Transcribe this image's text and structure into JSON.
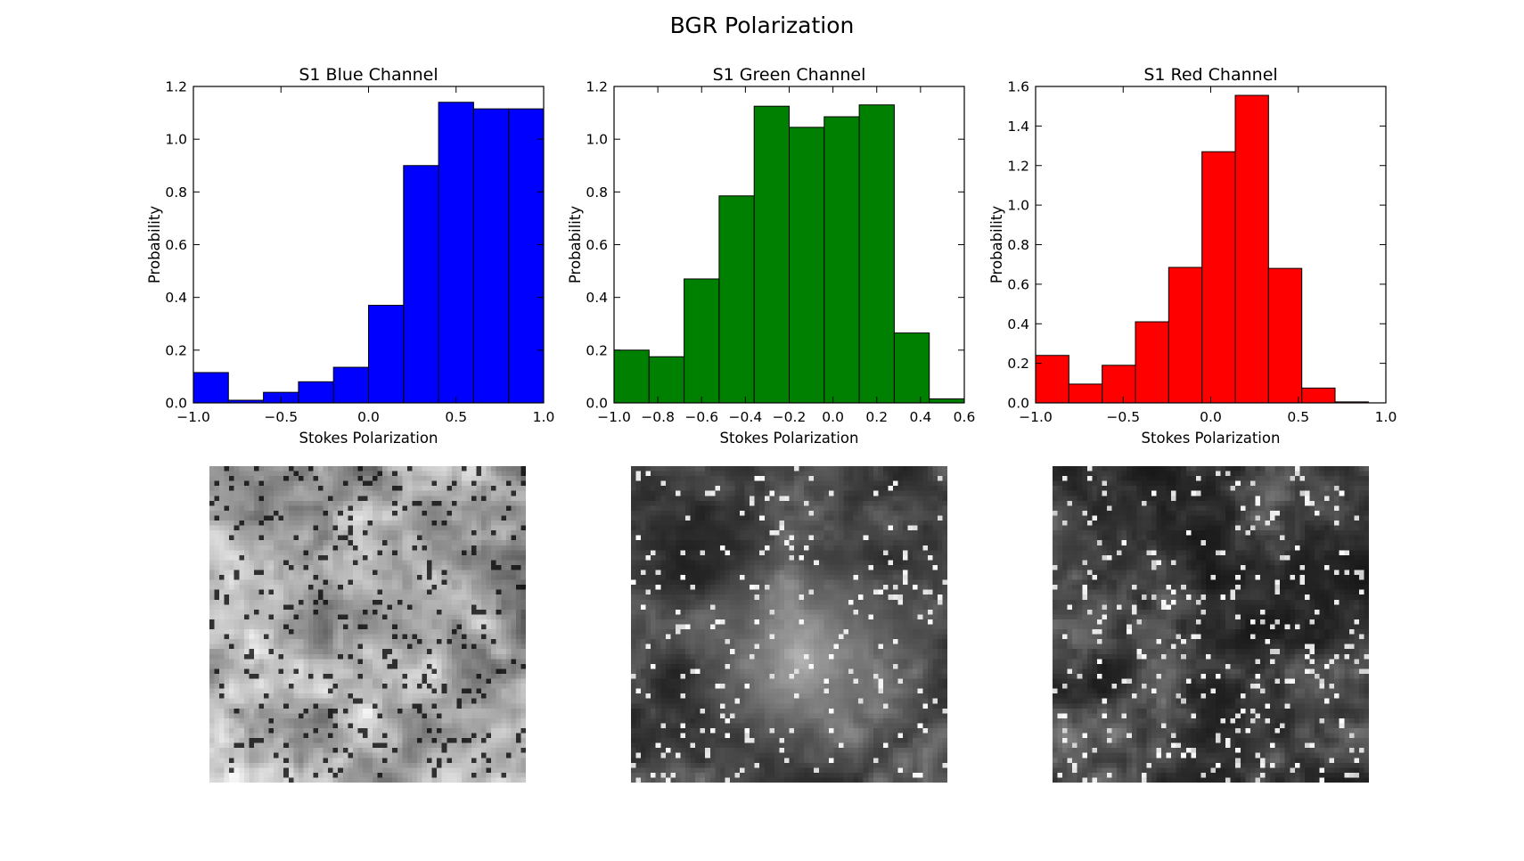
{
  "figure": {
    "title": "BGR Polarization"
  },
  "chart_data": [
    {
      "type": "bar",
      "title": "S1 Blue Channel",
      "xlabel": "Stokes Polarization",
      "ylabel": "Probability",
      "color": "#0000ff",
      "xlim": [
        -1.0,
        1.0
      ],
      "ylim": [
        0.0,
        1.2
      ],
      "xticks": [
        -1.0,
        -0.5,
        0.0,
        0.5,
        1.0
      ],
      "xtick_labels": [
        "−1.0",
        "−0.5",
        "0.0",
        "0.5",
        "1.0"
      ],
      "yticks": [
        0.0,
        0.2,
        0.4,
        0.6,
        0.8,
        1.0,
        1.2
      ],
      "ytick_labels": [
        "0.0",
        "0.2",
        "0.4",
        "0.6",
        "0.8",
        "1.0",
        "1.2"
      ],
      "bin_edges": [
        -1.0,
        -0.8,
        -0.6,
        -0.4,
        -0.2,
        0.0,
        0.2,
        0.4,
        0.6,
        0.8,
        1.0
      ],
      "values": [
        0.115,
        0.01,
        0.04,
        0.08,
        0.135,
        0.37,
        0.9,
        1.14,
        1.115,
        1.115
      ]
    },
    {
      "type": "bar",
      "title": "S1 Green Channel",
      "xlabel": "Stokes Polarization",
      "ylabel": "Probability",
      "color": "#008000",
      "xlim": [
        -1.0,
        0.6
      ],
      "ylim": [
        0.0,
        1.2
      ],
      "xticks": [
        -1.0,
        -0.8,
        -0.6,
        -0.4,
        -0.2,
        0.0,
        0.2,
        0.4,
        0.6
      ],
      "xtick_labels": [
        "−1.0",
        "−0.8",
        "−0.6",
        "−0.4",
        "−0.2",
        "0.0",
        "0.2",
        "0.4",
        "0.6"
      ],
      "yticks": [
        0.0,
        0.2,
        0.4,
        0.6,
        0.8,
        1.0,
        1.2
      ],
      "ytick_labels": [
        "0.0",
        "0.2",
        "0.4",
        "0.6",
        "0.8",
        "1.0",
        "1.2"
      ],
      "bin_edges": [
        -1.0,
        -0.84,
        -0.68,
        -0.52,
        -0.36,
        -0.2,
        -0.04,
        0.12,
        0.28,
        0.44,
        0.6
      ],
      "values": [
        0.2,
        0.175,
        0.47,
        0.785,
        1.125,
        1.045,
        1.085,
        1.13,
        0.265,
        0.015
      ]
    },
    {
      "type": "bar",
      "title": "S1 Red Channel",
      "xlabel": "Stokes Polarization",
      "ylabel": "Probability",
      "color": "#ff0000",
      "xlim": [
        -1.0,
        1.0
      ],
      "ylim": [
        0.0,
        1.6
      ],
      "xticks": [
        -1.0,
        -0.5,
        0.0,
        0.5,
        1.0
      ],
      "xtick_labels": [
        "−1.0",
        "−0.5",
        "0.0",
        "0.5",
        "1.0"
      ],
      "yticks": [
        0.0,
        0.2,
        0.4,
        0.6,
        0.8,
        1.0,
        1.2,
        1.4,
        1.6
      ],
      "ytick_labels": [
        "0.0",
        "0.2",
        "0.4",
        "0.6",
        "0.8",
        "1.0",
        "1.2",
        "1.4",
        "1.6"
      ],
      "bin_edges": [
        -1.0,
        -0.81,
        -0.62,
        -0.43,
        -0.24,
        -0.05,
        0.14,
        0.33,
        0.52,
        0.71,
        0.9
      ],
      "values": [
        0.24,
        0.095,
        0.19,
        0.41,
        0.685,
        1.27,
        1.555,
        0.68,
        0.075,
        0.005
      ]
    }
  ],
  "images": [
    {
      "label": "blue-channel-s1-map",
      "tone": "light"
    },
    {
      "label": "green-channel-s1-map",
      "tone": "dark-center-light"
    },
    {
      "label": "red-channel-s1-map",
      "tone": "dark"
    }
  ]
}
